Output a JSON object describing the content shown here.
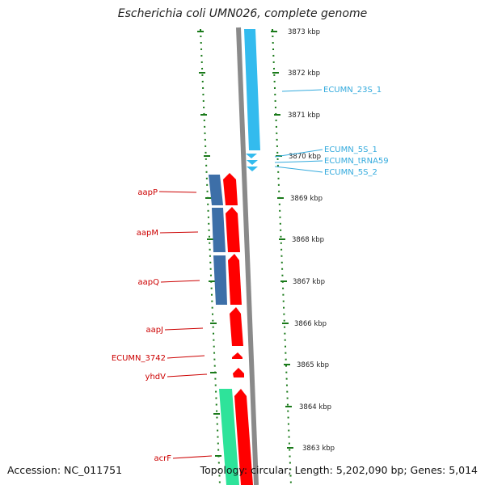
{
  "title": "Escherichia coli UMN026, complete genome",
  "accession": "Accession: NC_011751",
  "topology": "Topology: circular; Length: 5,202,090 bp; Genes: 5,014",
  "colors": {
    "backbone": "#8a8a8a",
    "forward_gene": "#ff0000",
    "reverse_gene": "#3d6fa8",
    "rna": "#33bbee",
    "operon_green": "#2ee39a",
    "tick": "#1a7a1a",
    "label_red": "#cc0000",
    "label_blue": "#33aadd"
  },
  "kbp_ticks": [
    "3873 kbp",
    "3872 kbp",
    "3871 kbp",
    "3870 kbp",
    "3869 kbp",
    "3868 kbp",
    "3867 kbp",
    "3866 kbp",
    "3865 kbp",
    "3864 kbp",
    "3863 kbp"
  ],
  "gene_labels": {
    "right": [
      "ECUMN_23S_1",
      "ECUMN_5S_1",
      "ECUMN_tRNA59",
      "ECUMN_5S_2"
    ],
    "left": [
      "aapP",
      "aapM",
      "aapQ",
      "aapJ",
      "ECUMN_3742",
      "yhdV",
      "acrF"
    ]
  }
}
